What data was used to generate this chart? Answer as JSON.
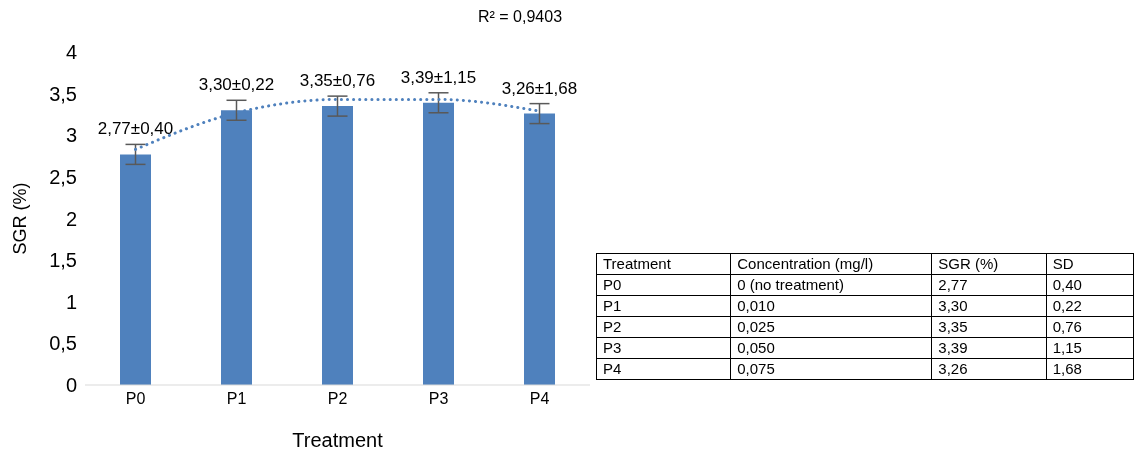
{
  "chart_data": [
    {
      "type": "bar",
      "categories": [
        "P0",
        "P1",
        "P2",
        "P3",
        "P4"
      ],
      "xlabel": "Treatment",
      "ylabel": "SGR (%)",
      "series": [
        {
          "type": "bar",
          "color": "#4f81bd",
          "values": [
            2.77,
            3.3,
            3.35,
            3.39,
            3.26
          ],
          "errors": [
            0.12,
            0.12,
            0.12,
            0.12,
            0.12
          ],
          "value_labels": [
            "2,77±0,40",
            "3,30±0,22",
            "3,35±0,76",
            "3,39±1,15",
            "3,26±1,68"
          ]
        },
        {
          "type": "line",
          "color": "#4f81bd",
          "line_style": "dotted",
          "values": [
            2.83,
            3.27,
            3.43,
            3.43,
            3.29
          ]
        }
      ],
      "ylim": [
        0,
        4
      ],
      "yticks": [
        0,
        {
          "value": 0.5,
          "label": "0,5"
        },
        1,
        {
          "value": 1.5,
          "label": "1,5"
        },
        2,
        {
          "value": 2.5,
          "label": "2,5"
        },
        3,
        {
          "value": 3.5,
          "label": "3,5"
        },
        4
      ],
      "annotations": [
        "R² = 0,9403"
      ],
      "grid": false,
      "legend": false
    },
    {
      "type": "other",
      "annotations": [
        "Treatment",
        "Concentration (mg/l)",
        "SGR (%)",
        "SD",
        "P0",
        "0 (no treatment)",
        "2,77",
        "0,40",
        "P1",
        "0,010",
        "3,30",
        "0,22",
        "P2",
        "0,025",
        "3,35",
        "0,76",
        "P3",
        "0,050",
        "3,39",
        "1,15",
        "P4",
        "0,075",
        "3,26",
        "1,68"
      ]
    }
  ]
}
